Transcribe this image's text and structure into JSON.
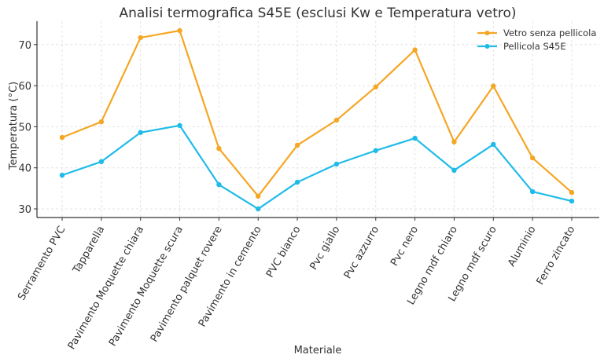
{
  "chart_data": {
    "type": "line",
    "title": "Analisi termografica S45E (esclusi Kw e Temperatura vetro)",
    "xlabel": "Materiale",
    "ylabel": "Temperatura (°C)",
    "ylim": [
      27.9,
      75.7
    ],
    "yticks": [
      30,
      40,
      50,
      60,
      70
    ],
    "grid": true,
    "legend_position": "top-right",
    "categories": [
      "Serramento PVC",
      "Tapparella",
      "Pavimento Moquette chiara",
      "Pavimento Moquette scura",
      "Pavimento palquet rovere",
      "Pavimento in cemento",
      "PVC bianco",
      "Pvc giallo",
      "Pvc azzurro",
      "Pvc nero",
      "Legno mdf chiaro",
      "Legno mdf scuro",
      "Aluminio",
      "Ferro zincato"
    ],
    "series": [
      {
        "name": "Vetro senza pellicola",
        "color": "#F5A623",
        "values": [
          47.4,
          51.2,
          71.7,
          73.4,
          44.7,
          33.1,
          45.5,
          51.6,
          59.7,
          68.7,
          46.3,
          59.9,
          42.4,
          34.0
        ]
      },
      {
        "name": "Pellicola S45E",
        "color": "#1FBBE8",
        "values": [
          38.2,
          41.5,
          48.6,
          50.3,
          35.9,
          30.0,
          36.5,
          40.9,
          44.2,
          47.2,
          39.4,
          45.7,
          34.2,
          31.9
        ]
      }
    ]
  }
}
